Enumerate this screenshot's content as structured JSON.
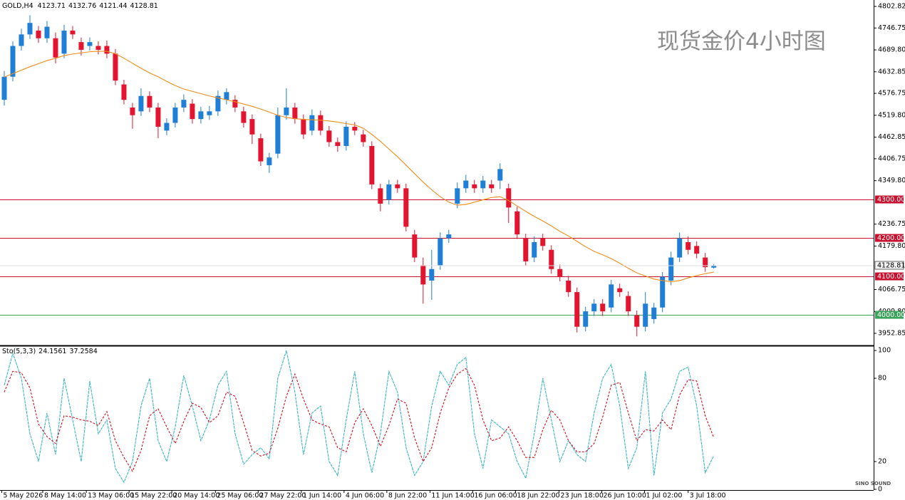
{
  "chart_data": [
    {
      "type": "candlestick",
      "title": "现货金价4小时图",
      "symbol": "GOLD,H4",
      "x": [
        0,
        1,
        2,
        3,
        4,
        5,
        6,
        7,
        8,
        9,
        10,
        11,
        12,
        13,
        14,
        15,
        16,
        17,
        18,
        19,
        20,
        21,
        22,
        23,
        24,
        25,
        26,
        27,
        28,
        29,
        30,
        31,
        32,
        33,
        34,
        35,
        36,
        37,
        38,
        39,
        40,
        41,
        42,
        43,
        44,
        45,
        46,
        47,
        48,
        49,
        50,
        51,
        52,
        53,
        54,
        55,
        56,
        57,
        58,
        59,
        60,
        61,
        62,
        63,
        64,
        65,
        66,
        67,
        68,
        69,
        70,
        71,
        72,
        73,
        74,
        75,
        76,
        77,
        78,
        79,
        80,
        81,
        82,
        83
      ],
      "open": [
        4560,
        4620,
        4700,
        4730,
        4740,
        4720,
        4720,
        4680,
        4740,
        4710,
        4700,
        4700,
        4700,
        4680,
        4600,
        4540,
        4530,
        4570,
        4540,
        4480,
        4500,
        4540,
        4550,
        4510,
        4520,
        4530,
        4560,
        4560,
        4530,
        4510,
        4460,
        4390,
        4420,
        4520,
        4540,
        4510,
        4480,
        4520,
        4480,
        4450,
        4440,
        4490,
        4470,
        4440,
        4330,
        4300,
        4340,
        4330,
        4210,
        4130,
        4090,
        4130,
        4200,
        4290,
        4330,
        4340,
        4330,
        4340,
        4350,
        4330,
        4270,
        4200,
        4150,
        4200,
        4170,
        4120,
        4090,
        4060,
        3970,
        4010,
        4030,
        4020,
        4070,
        4050,
        4000,
        3970,
        3990,
        4020,
        4090,
        4150,
        4190,
        4180,
        4150,
        4123.71
      ],
      "high": [
        4635,
        4712,
        4745,
        4780,
        4752,
        4765,
        4735,
        4755,
        4752,
        4722,
        4722,
        4712,
        4714,
        4692,
        4612,
        4552,
        4590,
        4582,
        4552,
        4512,
        4552,
        4574,
        4562,
        4542,
        4544,
        4584,
        4590,
        4572,
        4542,
        4522,
        4472,
        4422,
        4540,
        4590,
        4552,
        4522,
        4535,
        4532,
        4492,
        4462,
        4504,
        4502,
        4482,
        4452,
        4342,
        4352,
        4352,
        4342,
        4222,
        4150,
        4170,
        4215,
        4222,
        4345,
        4365,
        4352,
        4362,
        4352,
        4395,
        4342,
        4282,
        4212,
        4205,
        4212,
        4182,
        4132,
        4102,
        4072,
        4022,
        4042,
        4042,
        4092,
        4082,
        4062,
        4012,
        4060,
        4032,
        4112,
        4165,
        4215,
        4205,
        4192,
        4162,
        4132.76
      ],
      "low": [
        4545,
        4608,
        4688,
        4718,
        4708,
        4708,
        4655,
        4668,
        4718,
        4675,
        4688,
        4678,
        4668,
        4598,
        4548,
        4485,
        4518,
        4528,
        4460,
        4468,
        4488,
        4528,
        4498,
        4498,
        4508,
        4518,
        4548,
        4528,
        4488,
        4445,
        4388,
        4370,
        4408,
        4508,
        4498,
        4458,
        4468,
        4468,
        4438,
        4425,
        4428,
        4468,
        4438,
        4328,
        4270,
        4288,
        4318,
        4218,
        4138,
        4030,
        4040,
        4118,
        4188,
        4278,
        4318,
        4318,
        4318,
        4318,
        4328,
        4240,
        4198,
        4128,
        4138,
        4168,
        4108,
        4088,
        4048,
        3955,
        3958,
        3998,
        3998,
        4008,
        4048,
        3998,
        3945,
        3958,
        3978,
        4008,
        4078,
        4138,
        4158,
        4148,
        4113,
        4121.44
      ],
      "close": [
        4620,
        4700,
        4730,
        4760,
        4720,
        4750,
        4670,
        4740,
        4730,
        4690,
        4710,
        4690,
        4680,
        4610,
        4560,
        4520,
        4570,
        4540,
        4490,
        4500,
        4540,
        4560,
        4510,
        4530,
        4530,
        4570,
        4580,
        4540,
        4500,
        4470,
        4400,
        4410,
        4520,
        4540,
        4510,
        4470,
        4520,
        4480,
        4450,
        4440,
        4490,
        4480,
        4450,
        4340,
        4290,
        4340,
        4330,
        4230,
        4150,
        4080,
        4120,
        4200,
        4210,
        4330,
        4350,
        4330,
        4350,
        4330,
        4380,
        4280,
        4210,
        4140,
        4190,
        4180,
        4120,
        4100,
        4060,
        3970,
        4010,
        4030,
        4010,
        4080,
        4060,
        4010,
        3970,
        4030,
        4020,
        4100,
        4150,
        4200,
        4170,
        4160,
        4125,
        4128.81
      ],
      "up_color": "#1f7ed6",
      "down_color": "#e3142d",
      "series": [
        {
          "color": "#f08c1a",
          "values": [
            4619,
            4628,
            4637,
            4646,
            4654,
            4662,
            4668,
            4675,
            4679,
            4682,
            4685,
            4686,
            4686,
            4680,
            4668,
            4655,
            4642,
            4630,
            4620,
            4608,
            4597,
            4588,
            4582,
            4576,
            4570,
            4565,
            4560,
            4555,
            4549,
            4543,
            4536,
            4528,
            4520,
            4514,
            4511,
            4509,
            4508,
            4507,
            4505,
            4502,
            4498,
            4495,
            4486,
            4470,
            4452,
            4432,
            4412,
            4390,
            4368,
            4346,
            4326,
            4308,
            4294,
            4286,
            4288,
            4294,
            4300,
            4306,
            4308,
            4298,
            4284,
            4270,
            4257,
            4245,
            4232,
            4218,
            4206,
            4192,
            4178,
            4166,
            4157,
            4147,
            4135,
            4122,
            4110,
            4102,
            4094,
            4090,
            4087,
            4090,
            4097,
            4103,
            4108,
            4112
          ]
        }
      ],
      "levels": [
        {
          "value": 4300,
          "label": "4300.00",
          "color": "#c8102e"
        },
        {
          "value": 4200,
          "label": "4200.00",
          "color": "#c8102e"
        },
        {
          "value": 4100,
          "label": "4100.00",
          "color": "#c8102e"
        },
        {
          "value": 4000,
          "label": "4000.00",
          "color": "#3aa35a"
        }
      ],
      "xlim": [
        -0.5,
        101.7
      ],
      "ylim": [
        3921.4,
        4819.5
      ],
      "yticks": [
        4802.82,
        4746.75,
        {
          "value": 4689.8,
          "label": "4689.80"
        },
        4632.85,
        4576.75,
        {
          "value": 4519.8,
          "label": "4519.80"
        },
        4462.85,
        4406.75,
        {
          "value": 4349.8,
          "label": "4349.80"
        },
        4236.75,
        {
          "value": 4179.8,
          "label": "4179.80"
        },
        4066.75,
        {
          "value": 4009.8,
          "label": "4009.80"
        },
        3952.85
      ],
      "xticks": [
        {
          "value": -0.3,
          "label": "5 May 2026"
        },
        {
          "value": 4.5,
          "label": "8 May 14:00"
        },
        {
          "value": 9.6,
          "label": "13 May 06:00"
        },
        {
          "value": 14.6,
          "label": "15 May 22:00"
        },
        {
          "value": 19.6,
          "label": "20 May 14:00"
        },
        {
          "value": 24.7,
          "label": "25 May 06:00"
        },
        {
          "value": 29.7,
          "label": "27 May 22:00"
        },
        {
          "value": 34.75,
          "label": "1 Jun 14:00"
        },
        {
          "value": 39.75,
          "label": "4 Jun 06:00"
        },
        {
          "value": 44.75,
          "label": "8 Jun 22:00"
        },
        {
          "value": 49.8,
          "label": "11 Jun 14:00"
        },
        {
          "value": 54.8,
          "label": "16 Jun 06:00"
        },
        {
          "value": 59.8,
          "label": "18 Jun 22:00"
        },
        {
          "value": 64.9,
          "label": "23 Jun 18:00"
        },
        {
          "value": 69.9,
          "label": "26 Jun 10:00"
        },
        {
          "value": 74.9,
          "label": "1 Jul 02:00"
        },
        {
          "value": 80,
          "label": "3 Jul 18:00"
        }
      ]
    },
    {
      "type": "line",
      "title": "Sto(5,3,3)",
      "series": [
        {
          "color": "#3bb6c6",
          "values": [
            75,
            98,
            80,
            40,
            20,
            55,
            25,
            80,
            50,
            20,
            78,
            40,
            50,
            15,
            5,
            20,
            60,
            80,
            35,
            20,
            45,
            82,
            60,
            35,
            50,
            75,
            85,
            40,
            18,
            25,
            30,
            22,
            80,
            100,
            70,
            25,
            55,
            60,
            20,
            10,
            50,
            85,
            40,
            12,
            40,
            85,
            70,
            30,
            10,
            20,
            60,
            85,
            75,
            90,
            95,
            40,
            15,
            50,
            45,
            40,
            20,
            8,
            40,
            80,
            50,
            20,
            35,
            25,
            20,
            55,
            80,
            90,
            60,
            15,
            30,
            85,
            10,
            55,
            65,
            85,
            88,
            60,
            12,
            24.1561
          ]
        },
        {
          "color": "#d0101e",
          "values": [
            70,
            85,
            84,
            73,
            47,
            38,
            33,
            53,
            52,
            50,
            49,
            46,
            56,
            35,
            23,
            13,
            28,
            53,
            58,
            45,
            33,
            49,
            62,
            59,
            48,
            53,
            70,
            67,
            48,
            28,
            24,
            26,
            44,
            67,
            83,
            65,
            50,
            47,
            45,
            30,
            27,
            48,
            58,
            46,
            31,
            46,
            65,
            62,
            37,
            20,
            30,
            55,
            73,
            83,
            87,
            75,
            50,
            35,
            37,
            45,
            35,
            23,
            23,
            43,
            57,
            50,
            35,
            27,
            27,
            33,
            52,
            75,
            77,
            55,
            35,
            43,
            42,
            50,
            43,
            68,
            79,
            78,
            53,
            37.2584
          ]
        }
      ],
      "ylim": [
        -0.5,
        102.6
      ],
      "yticks": [
        100,
        80,
        20,
        0
      ]
    }
  ]
}
